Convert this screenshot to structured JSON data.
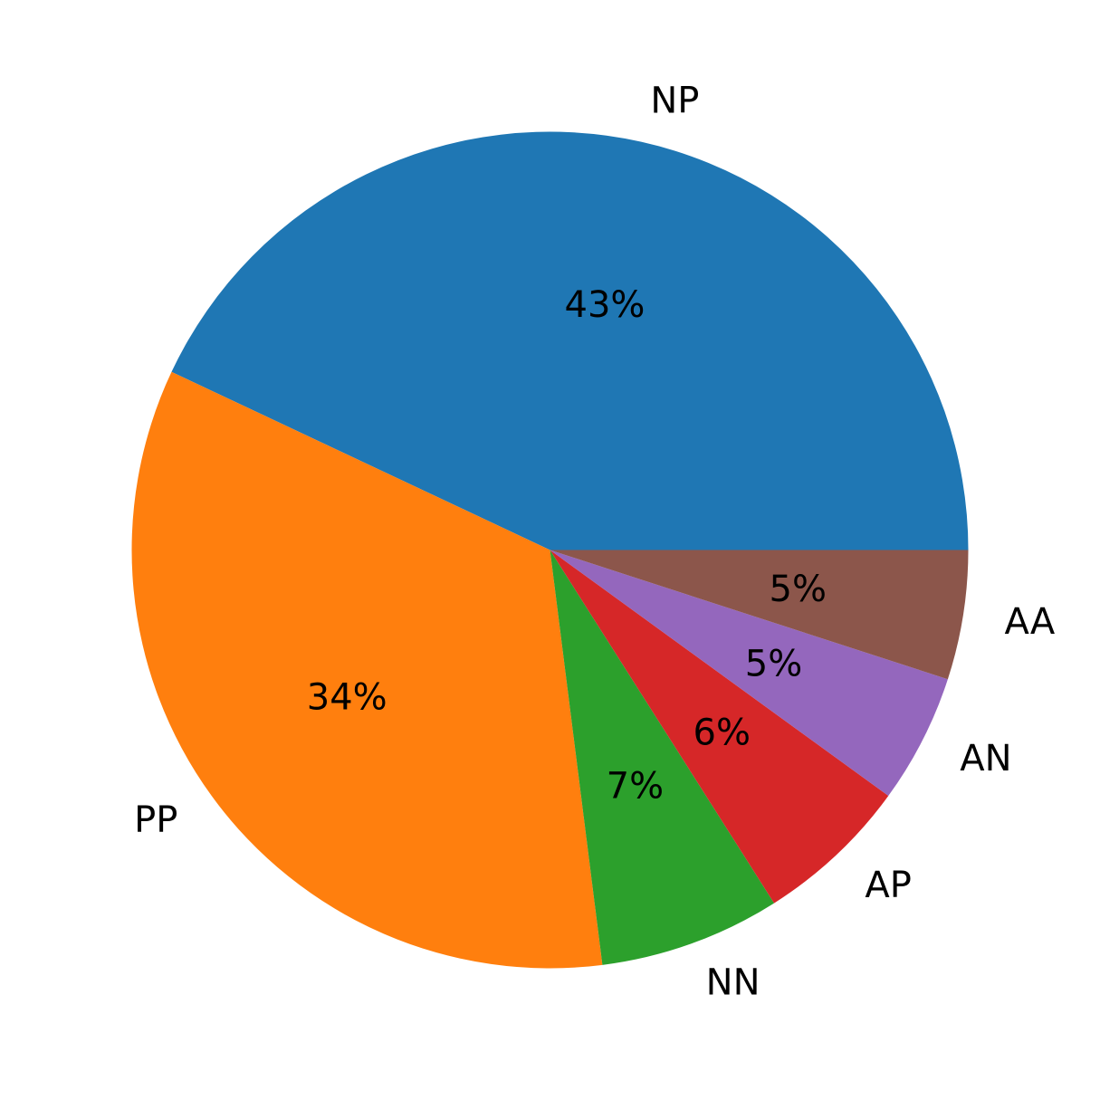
{
  "chart_data": {
    "type": "pie",
    "title": "",
    "start_angle_deg": 0,
    "direction": "counterclockwise",
    "slices": [
      {
        "label": "NP",
        "value": 43,
        "percent_label": "43%",
        "color": "#1f77b4"
      },
      {
        "label": "PP",
        "value": 34,
        "percent_label": "34%",
        "color": "#ff7f0e"
      },
      {
        "label": "NN",
        "value": 7,
        "percent_label": "7%",
        "color": "#2ca02c"
      },
      {
        "label": "AP",
        "value": 6,
        "percent_label": "6%",
        "color": "#d62728"
      },
      {
        "label": "AN",
        "value": 5,
        "percent_label": "5%",
        "color": "#9467bd"
      },
      {
        "label": "AA",
        "value": 5,
        "percent_label": "5%",
        "color": "#8c564b"
      }
    ]
  }
}
